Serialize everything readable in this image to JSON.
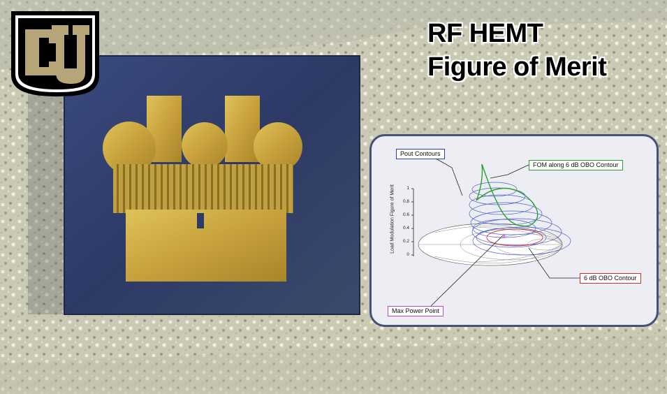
{
  "title": {
    "line1": "RF HEMT",
    "line2": "Figure of Merit"
  },
  "logo": {
    "letters": "CU",
    "colors": {
      "gold": "#b7a57a",
      "black": "#000000"
    }
  },
  "inset": {
    "labels": {
      "pout": "Pout Contours",
      "fom": "FOM along 6 dB OBO Contour",
      "obo": "6 dB OBO Contour",
      "max_power": "Max Power Point"
    },
    "y_axis_label": "Load Modulation Figure of Merit",
    "y_ticks": [
      "1",
      "0.8",
      "0.6",
      "0.4",
      "0.2",
      "0"
    ],
    "colors": {
      "pout": "#3b4fcf",
      "fom": "#2ca02c",
      "obo": "#d0302a",
      "max": "#c040d0"
    }
  }
}
